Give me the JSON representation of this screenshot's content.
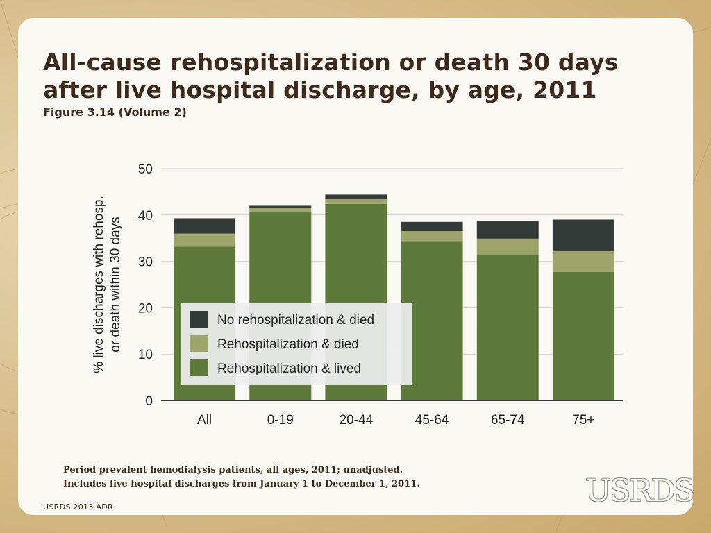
{
  "slide": {
    "title_line1": "All-cause rehospitalization or death 30 days",
    "title_line2": "after live hospital discharge, by age, 2011",
    "subtitle": "Figure 3.14 (Volume 2)",
    "note_line1": "Period prevalent hemodialysis patients, all ages, 2011; unadjusted.",
    "note_line2": "Includes live hospital discharges from January 1 to December 1, 2011.",
    "footer": "USRDS 2013 ADR",
    "logo": "USRDS"
  },
  "chart_data": {
    "type": "bar",
    "stacked": true,
    "categories": [
      "All",
      "0-19",
      "20-44",
      "45-64",
      "65-74",
      "75+"
    ],
    "series": [
      {
        "name": "Rehospitalization & lived",
        "color": "#5e7a3a",
        "values": [
          33.2,
          40.7,
          42.4,
          34.4,
          31.5,
          27.7
        ]
      },
      {
        "name": "Rehospitalization & died",
        "color": "#9ea56a",
        "values": [
          2.8,
          0.9,
          1.0,
          2.1,
          3.4,
          4.5
        ]
      },
      {
        "name": "No rehospitalization & died",
        "color": "#353b39",
        "values": [
          3.3,
          0.4,
          1.0,
          2.0,
          3.8,
          6.8
        ]
      }
    ],
    "legend_order": [
      "No rehospitalization & died",
      "Rehospitalization & died",
      "Rehospitalization & lived"
    ],
    "ylabel_line1": "% live discharges with rehosp.",
    "ylabel_line2": "or death within 30 days",
    "ylim": [
      0,
      50
    ],
    "yticks": [
      0,
      10,
      20,
      30,
      40,
      50
    ],
    "grid": true,
    "legend_position": "lower-left inside"
  }
}
